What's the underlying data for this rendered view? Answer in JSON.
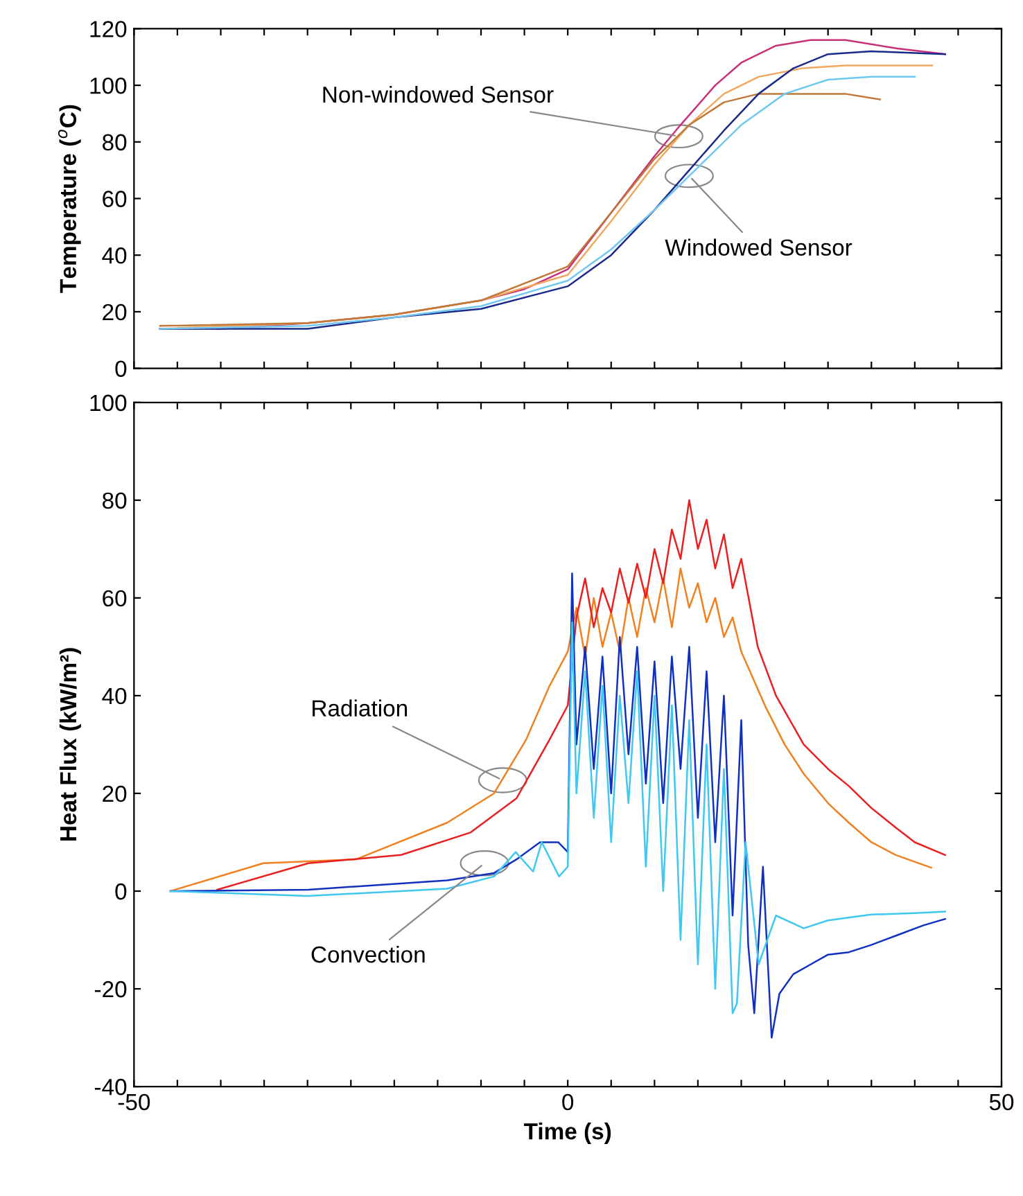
{
  "chart_data": [
    {
      "type": "line",
      "ylabel": "Temperature ($^{o}$C)",
      "xlim": [
        -50,
        50
      ],
      "ylim": [
        0,
        120
      ],
      "tick_labels": "y",
      "xticks": [
        {
          "value": -50,
          "label": null
        },
        {
          "value": -45,
          "label": null
        },
        {
          "value": -40,
          "label": null
        },
        {
          "value": -35,
          "label": null
        },
        {
          "value": -30,
          "label": null
        },
        {
          "value": -25,
          "label": null
        },
        {
          "value": -20,
          "label": null
        },
        {
          "value": -15,
          "label": null
        },
        {
          "value": -10,
          "label": null
        },
        {
          "value": -5,
          "label": null
        },
        {
          "value": 0,
          "label": null
        },
        {
          "value": 5,
          "label": null
        },
        {
          "value": 10,
          "label": null
        },
        {
          "value": 15,
          "label": null
        },
        {
          "value": 20,
          "label": null
        },
        {
          "value": 25,
          "label": null
        },
        {
          "value": 30,
          "label": null
        },
        {
          "value": 35,
          "label": null
        },
        {
          "value": 40,
          "label": null
        },
        {
          "value": 45,
          "label": null
        },
        {
          "value": 50,
          "label": null
        }
      ],
      "yticks": [
        0,
        20,
        40,
        60,
        80,
        100,
        120
      ],
      "annotations": [
        {
          "text": "Non-windowed Sensor",
          "x": 12.8,
          "y": 82
        },
        {
          "text": "Windowed Sensor",
          "x": 14,
          "y": 68
        }
      ],
      "series": [
        {
          "color": "#c8307a",
          "x": [
            -47,
            -40,
            -30,
            -20,
            -10,
            -5,
            0,
            5,
            10,
            13,
            17,
            20,
            24,
            28,
            32,
            38,
            43.5
          ],
          "values": [
            14,
            14,
            16,
            19,
            24,
            28,
            35,
            55,
            75,
            86,
            100,
            108,
            114,
            116,
            116,
            113,
            111
          ]
        },
        {
          "color": "#f0a860",
          "x": [
            -47,
            -30,
            -20,
            -10,
            0,
            5,
            10,
            14,
            18,
            22,
            27,
            32,
            42
          ],
          "values": [
            14,
            16,
            19,
            24,
            33,
            52,
            72,
            86,
            97,
            103,
            106,
            107,
            107
          ]
        },
        {
          "color": "#c07838",
          "x": [
            -47,
            -30,
            -20,
            -10,
            0,
            5,
            10,
            14,
            18,
            22,
            27,
            32,
            36
          ],
          "values": [
            15,
            16,
            19,
            24,
            36,
            55,
            74,
            86,
            94,
            97,
            97,
            97,
            95
          ]
        },
        {
          "color": "#1a2a8a",
          "x": [
            -47,
            -30,
            -20,
            -10,
            0,
            5,
            10,
            14,
            18,
            22,
            26,
            30,
            35,
            43.5
          ],
          "values": [
            14,
            14,
            18,
            21,
            29,
            40,
            56,
            70,
            84,
            97,
            106,
            111,
            112,
            111
          ]
        },
        {
          "color": "#70c8f0",
          "x": [
            -47,
            -30,
            -20,
            -10,
            0,
            5,
            10,
            15,
            20,
            25,
            30,
            35,
            40
          ],
          "values": [
            14,
            15,
            18,
            22,
            31,
            42,
            56,
            71,
            86,
            97,
            102,
            103,
            103
          ]
        }
      ]
    },
    {
      "type": "line",
      "xlabel": "Time (s)",
      "ylabel": "Heat Flux (kW/m²)",
      "xlim": [
        -50,
        50
      ],
      "ylim": [
        -40,
        100
      ],
      "xticks": [
        -50,
        {
          "value": -45,
          "label": null
        },
        {
          "value": -40,
          "label": null
        },
        {
          "value": -35,
          "label": null
        },
        {
          "value": -30,
          "label": null
        },
        {
          "value": -25,
          "label": null
        },
        {
          "value": -20,
          "label": null
        },
        {
          "value": -15,
          "label": null
        },
        {
          "value": -10,
          "label": null
        },
        {
          "value": -5,
          "label": null
        },
        0,
        {
          "value": 5,
          "label": null
        },
        {
          "value": 10,
          "label": null
        },
        {
          "value": 15,
          "label": null
        },
        {
          "value": 20,
          "label": null
        },
        {
          "value": 25,
          "label": null
        },
        {
          "value": 30,
          "label": null
        },
        {
          "value": 35,
          "label": null
        },
        {
          "value": 40,
          "label": null
        },
        {
          "value": 45,
          "label": null
        },
        50
      ],
      "yticks": [
        -40,
        -20,
        0,
        20,
        40,
        60,
        80,
        100
      ],
      "annotations": [
        {
          "text": "Radiation",
          "x": -7.5,
          "y": 22.7
        },
        {
          "text": "Convection",
          "x": -9.6,
          "y": 5.7
        }
      ],
      "series": [
        {
          "color": "#f08020",
          "x": [
            -45.8,
            -35.1,
            -24.4,
            -13.9,
            -8.5,
            -4.8,
            -2.1,
            0,
            1,
            2,
            3,
            4,
            5,
            6,
            7,
            8,
            9,
            10,
            11,
            12,
            13,
            14,
            15,
            16,
            17,
            18,
            19,
            20,
            21,
            22.8,
            25,
            27.2,
            30,
            32.4,
            35,
            37.8,
            41.9
          ],
          "values": [
            0,
            5.7,
            6.5,
            14,
            20,
            31,
            42,
            49,
            58,
            48,
            60,
            50,
            57,
            49,
            60,
            52,
            62,
            55,
            64,
            54,
            66,
            58,
            63,
            55,
            60,
            52,
            56,
            49,
            45,
            37.7,
            30,
            24,
            18,
            14,
            10,
            7.4,
            4.8
          ]
        },
        {
          "color": "#e82020",
          "x": [
            -40.4,
            -29.9,
            -19.2,
            -11.2,
            -5.9,
            -2.1,
            0,
            1,
            2,
            3,
            4,
            5,
            6,
            7,
            8,
            9,
            10,
            11,
            12,
            13,
            14,
            15,
            16,
            17,
            18,
            19,
            20,
            21.9,
            24,
            27.2,
            30,
            32.4,
            35,
            37.8,
            40,
            43.5
          ],
          "values": [
            0.3,
            5.7,
            7.4,
            12,
            19,
            31,
            38,
            56,
            64,
            54,
            62,
            57,
            66,
            59,
            67,
            60,
            70,
            63,
            74,
            68,
            80,
            70,
            76,
            66,
            73,
            62,
            68,
            50,
            40,
            30,
            25,
            21.5,
            17,
            13,
            10,
            7.4
          ]
        },
        {
          "color": "#1030c0",
          "x": [
            -45.8,
            -29.9,
            -13.9,
            -8.5,
            -5.9,
            -3.2,
            -1.1,
            0,
            0.5,
            1,
            2,
            3,
            4,
            5,
            6,
            7,
            8,
            9,
            10,
            11,
            12,
            13,
            14,
            15,
            16,
            17,
            18,
            19,
            20,
            20.8,
            21.5,
            22.5,
            23.5,
            24.4,
            26,
            28,
            30,
            32.4,
            35,
            38,
            41,
            43.5
          ],
          "values": [
            0,
            0.3,
            2.2,
            3.7,
            6.5,
            10,
            10,
            8,
            65,
            30,
            50,
            25,
            48,
            20,
            52,
            28,
            50,
            22,
            47,
            18,
            48,
            25,
            50,
            15,
            45,
            10,
            40,
            -5,
            35,
            -11,
            -25,
            5,
            -30,
            -21,
            -17,
            -15,
            -13,
            -12.5,
            -11,
            -9,
            -7,
            -5.7
          ]
        },
        {
          "color": "#40c8f0",
          "x": [
            -45.8,
            -30,
            -13.9,
            -8.5,
            -6,
            -4,
            -3,
            -1,
            0,
            0.5,
            1,
            2,
            3,
            4,
            5,
            6,
            7,
            8,
            9,
            10,
            11,
            12,
            13,
            14,
            15,
            16,
            17,
            18,
            19,
            19.5,
            20.5,
            22,
            24,
            27.2,
            30,
            35,
            40,
            43.5
          ],
          "values": [
            0,
            -1,
            0.5,
            3,
            8,
            4,
            10,
            3,
            5,
            55,
            20,
            45,
            15,
            42,
            10,
            40,
            18,
            45,
            5,
            40,
            0,
            38,
            -10,
            35,
            -15,
            30,
            -20,
            25,
            -25,
            -23,
            10,
            -15,
            -5,
            -7.6,
            -6,
            -4.8,
            -4.5,
            -4.2
          ]
        }
      ]
    }
  ]
}
